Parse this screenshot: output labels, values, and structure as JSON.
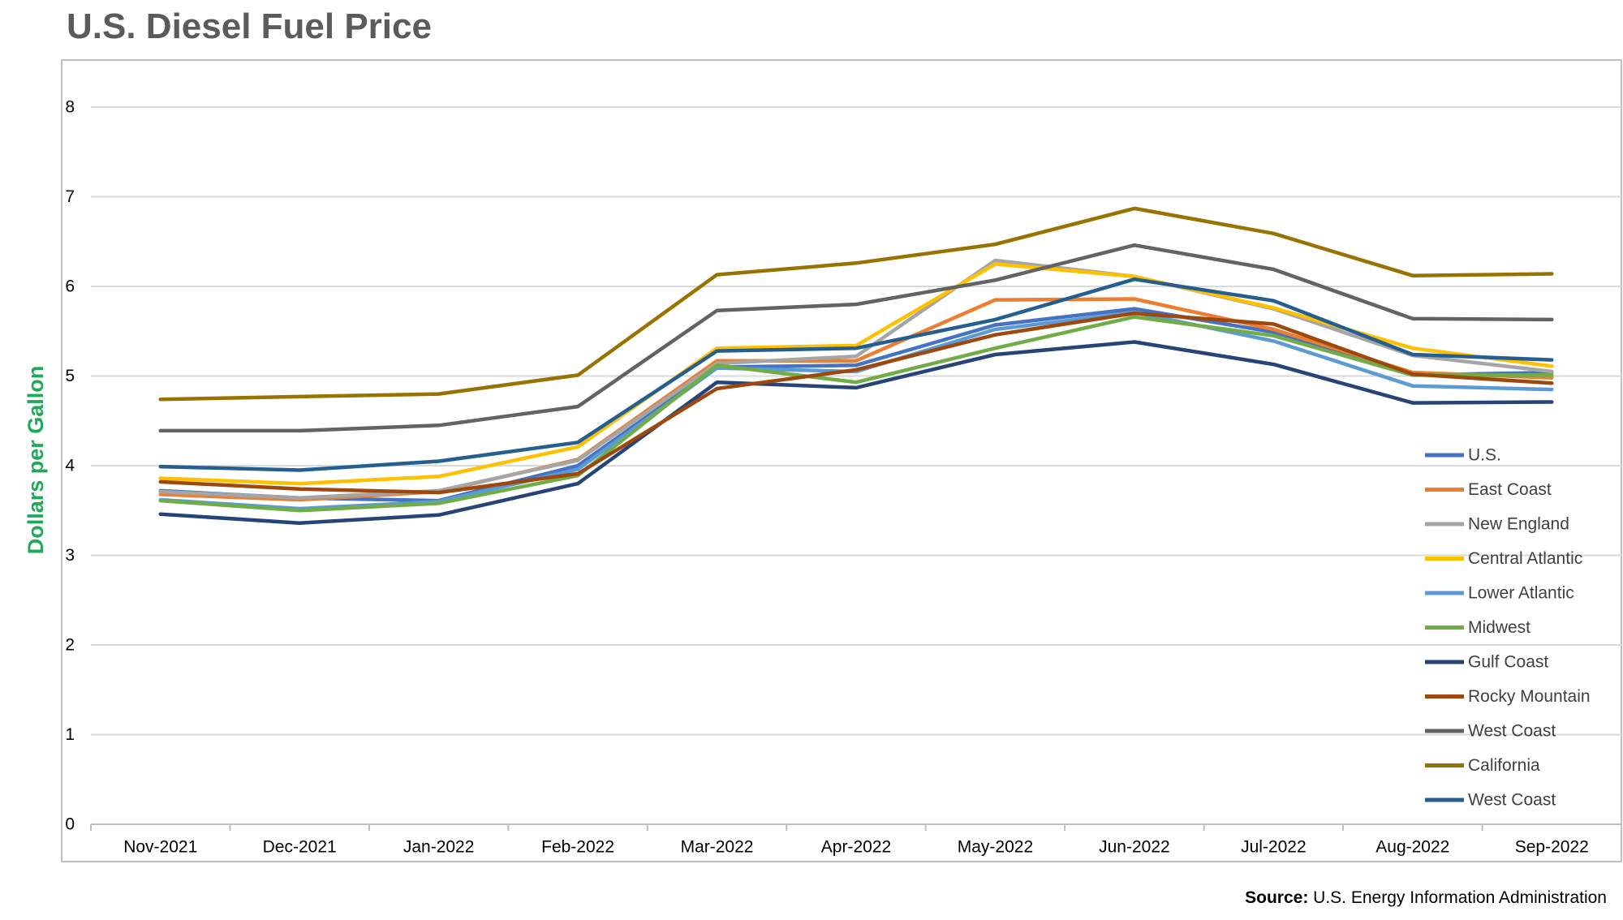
{
  "chart_data": {
    "type": "line",
    "title": "U.S. Diesel Fuel Price",
    "xlabel": "",
    "ylabel": "Dollars per Gallon",
    "ylim": [
      0,
      8
    ],
    "yticks": [
      "0",
      "1",
      "2",
      "3",
      "4",
      "5",
      "6",
      "7",
      "8"
    ],
    "grid": "horizontal",
    "legend_position": "right",
    "categories": [
      "Nov-2021",
      "Dec-2021",
      "Jan-2022",
      "Feb-2022",
      "Mar-2022",
      "Apr-2022",
      "May-2022",
      "Jun-2022",
      "Jul-2022",
      "Aug-2022",
      "Sep-2022"
    ],
    "series": [
      {
        "name": "U.S.",
        "color": "#4472c4",
        "values": [
          3.72,
          3.64,
          3.61,
          4.0,
          5.1,
          5.12,
          5.57,
          5.75,
          5.49,
          5.01,
          5.04
        ]
      },
      {
        "name": "East Coast",
        "color": "#ed7d31",
        "values": [
          3.68,
          3.62,
          3.71,
          4.07,
          5.17,
          5.17,
          5.85,
          5.86,
          5.52,
          5.04,
          4.98
        ]
      },
      {
        "name": "New England",
        "color": "#a5a5a5",
        "values": [
          3.71,
          3.64,
          3.72,
          4.06,
          5.14,
          5.22,
          6.29,
          6.11,
          5.75,
          5.23,
          5.05
        ]
      },
      {
        "name": "Central Atlantic",
        "color": "#ffc000",
        "values": [
          3.86,
          3.8,
          3.88,
          4.21,
          5.31,
          5.34,
          6.25,
          6.11,
          5.76,
          5.31,
          5.11
        ]
      },
      {
        "name": "Lower Atlantic",
        "color": "#5b9bd5",
        "values": [
          3.62,
          3.52,
          3.6,
          3.96,
          5.09,
          5.05,
          5.52,
          5.71,
          5.39,
          4.89,
          4.85
        ]
      },
      {
        "name": "Midwest",
        "color": "#70ad47",
        "values": [
          3.61,
          3.5,
          3.58,
          3.89,
          5.12,
          4.93,
          5.31,
          5.66,
          5.45,
          5.01,
          5.01
        ]
      },
      {
        "name": "Gulf Coast",
        "color": "#264478",
        "values": [
          3.46,
          3.36,
          3.45,
          3.8,
          4.93,
          4.87,
          5.24,
          5.38,
          5.13,
          4.7,
          4.71
        ]
      },
      {
        "name": "Rocky Mountain",
        "color": "#9e480e",
        "values": [
          3.82,
          3.74,
          3.7,
          3.91,
          4.86,
          5.07,
          5.46,
          5.7,
          5.58,
          5.02,
          4.92
        ]
      },
      {
        "name": "West Coast",
        "color": "#636363",
        "values": [
          4.39,
          4.39,
          4.45,
          4.66,
          5.73,
          5.8,
          6.07,
          6.46,
          6.19,
          5.64,
          5.63
        ]
      },
      {
        "name": "California",
        "color": "#997300",
        "values": [
          4.74,
          4.77,
          4.8,
          5.01,
          6.13,
          6.26,
          6.47,
          6.87,
          6.59,
          6.12,
          6.14
        ]
      },
      {
        "name": "West Coast",
        "color": "#255e91",
        "values": [
          3.99,
          3.95,
          4.05,
          4.26,
          5.28,
          5.31,
          5.63,
          6.08,
          5.84,
          5.24,
          5.18
        ]
      }
    ]
  },
  "source": {
    "label": "Source:",
    "text": "U.S. Energy Information Administration"
  }
}
